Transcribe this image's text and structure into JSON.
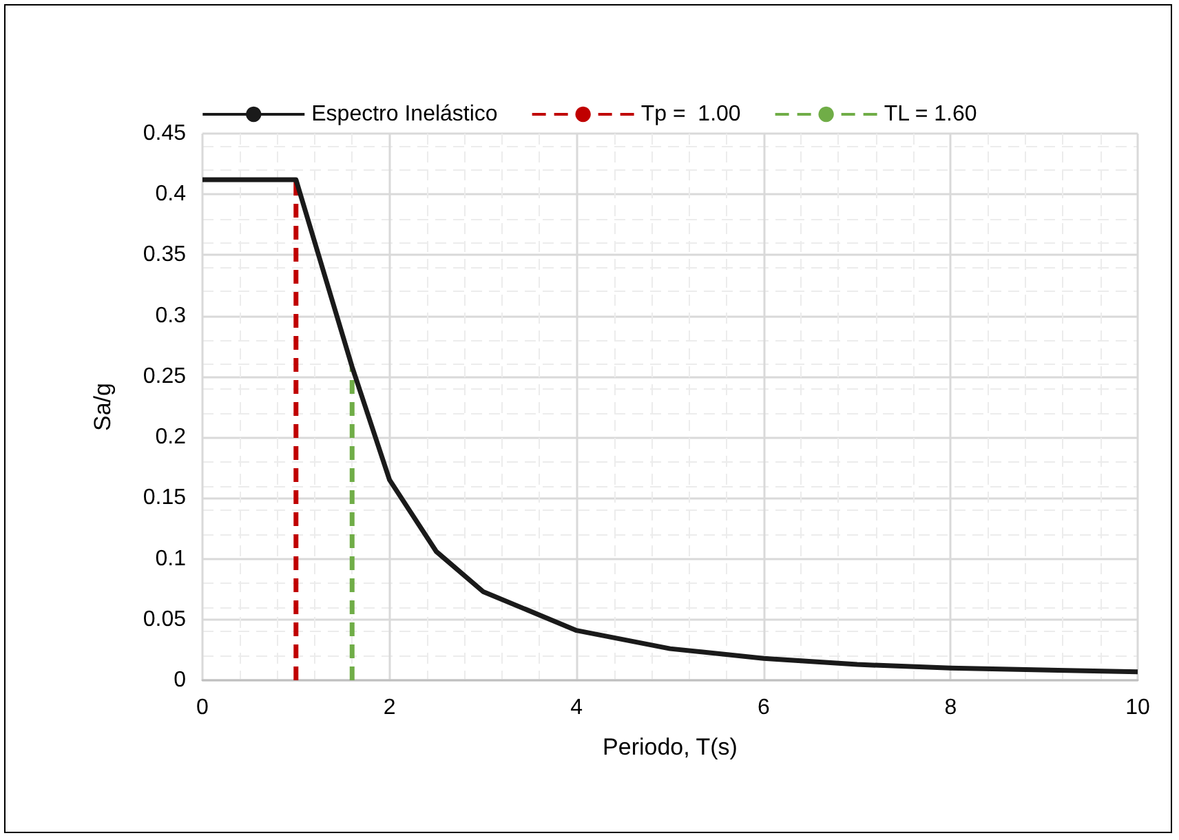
{
  "chart_data": {
    "type": "line",
    "xlabel": "Periodo, T(s)",
    "ylabel": "Sa/g",
    "xlim": [
      0,
      10
    ],
    "xticks": [
      0,
      2,
      4,
      6,
      8,
      10
    ],
    "ylim": [
      0,
      0.45
    ],
    "yticks": [
      0,
      0.05,
      0.1,
      0.15,
      0.2,
      0.25,
      0.3,
      0.35,
      0.4,
      0.45
    ],
    "grid": true,
    "legend": "top",
    "marker": "none",
    "series": [
      {
        "name": "Espectro Inelástico",
        "color": "#1a1a1a",
        "line_style": "solid",
        "x": [
          0,
          1,
          1.6,
          2,
          2.5,
          3,
          4,
          5,
          6,
          7,
          8,
          10
        ],
        "values": [
          0.412,
          0.412,
          0.258,
          0.165,
          0.106,
          0.073,
          0.041,
          0.026,
          0.018,
          0.013,
          0.01,
          0.007
        ]
      },
      {
        "name": "Tp =  1.00",
        "color": "#c00000",
        "line_style": "dashed",
        "x": [
          1,
          1
        ],
        "values": [
          0,
          0.412
        ]
      },
      {
        "name": "TL = 1.60",
        "color": "#70ad47",
        "line_style": "dashed",
        "x": [
          1.6,
          1.6
        ],
        "values": [
          0,
          0.258
        ]
      }
    ]
  }
}
